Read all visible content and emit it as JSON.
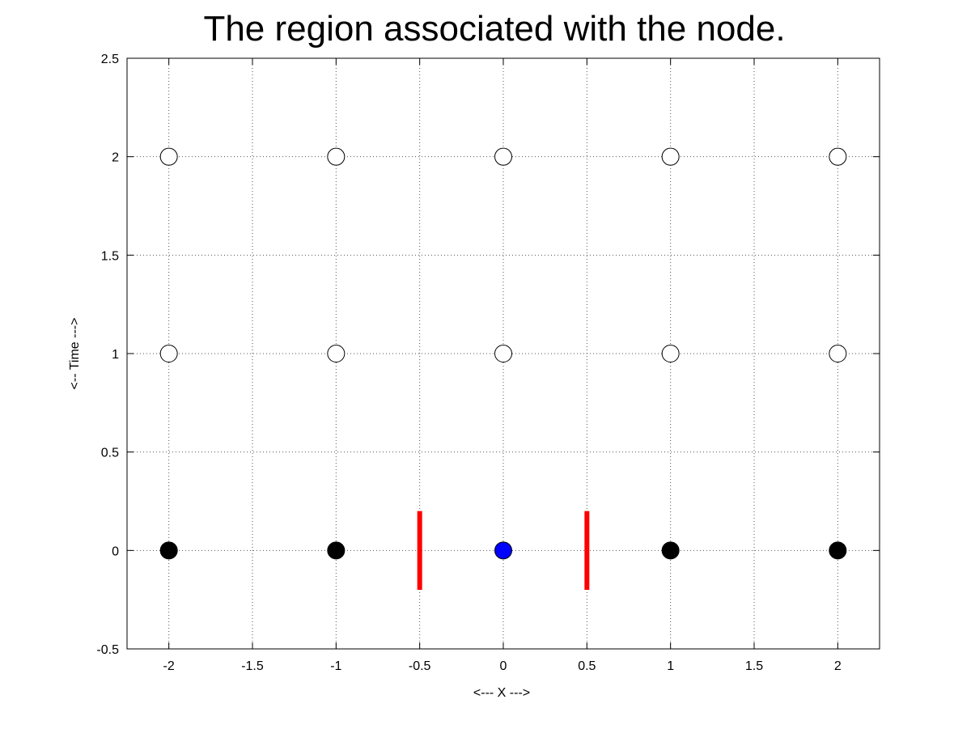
{
  "chart_data": {
    "type": "scatter",
    "title": "The region associated with the node.",
    "xlabel": "<--- X --->",
    "ylabel": "<-- Time --->",
    "xlim": [
      -2.25,
      2.25
    ],
    "ylim": [
      -0.5,
      2.5
    ],
    "grid": true,
    "x_ticks": [
      "-2",
      "-1.5",
      "-1",
      "-0.5",
      "0",
      "0.5",
      "1",
      "1.5",
      "2"
    ],
    "y_ticks": [
      "-0.5",
      "0",
      "0.5",
      "1",
      "1.5",
      "2",
      "2.5"
    ],
    "series": [
      {
        "marker": "filled-circle",
        "color": "#000000",
        "points": [
          {
            "x": -2,
            "y": 0
          },
          {
            "x": -1,
            "y": 0
          },
          {
            "x": 1,
            "y": 0
          },
          {
            "x": 2,
            "y": 0
          }
        ]
      },
      {
        "marker": "filled-circle",
        "color": "#0000ff",
        "points": [
          {
            "x": 0,
            "y": 0
          }
        ]
      },
      {
        "marker": "open-circle",
        "color": "#000000",
        "points": [
          {
            "x": -2,
            "y": 1
          },
          {
            "x": -1,
            "y": 1
          },
          {
            "x": 0,
            "y": 1
          },
          {
            "x": 1,
            "y": 1
          },
          {
            "x": 2,
            "y": 1
          },
          {
            "x": -2,
            "y": 2
          },
          {
            "x": -1,
            "y": 2
          },
          {
            "x": 0,
            "y": 2
          },
          {
            "x": 1,
            "y": 2
          },
          {
            "x": 2,
            "y": 2
          }
        ]
      }
    ],
    "region_bounds": {
      "color": "#ff0000",
      "lines": [
        {
          "x": -0.5,
          "y1": -0.2,
          "y2": 0.2
        },
        {
          "x": 0.5,
          "y1": -0.2,
          "y2": 0.2
        }
      ]
    }
  }
}
